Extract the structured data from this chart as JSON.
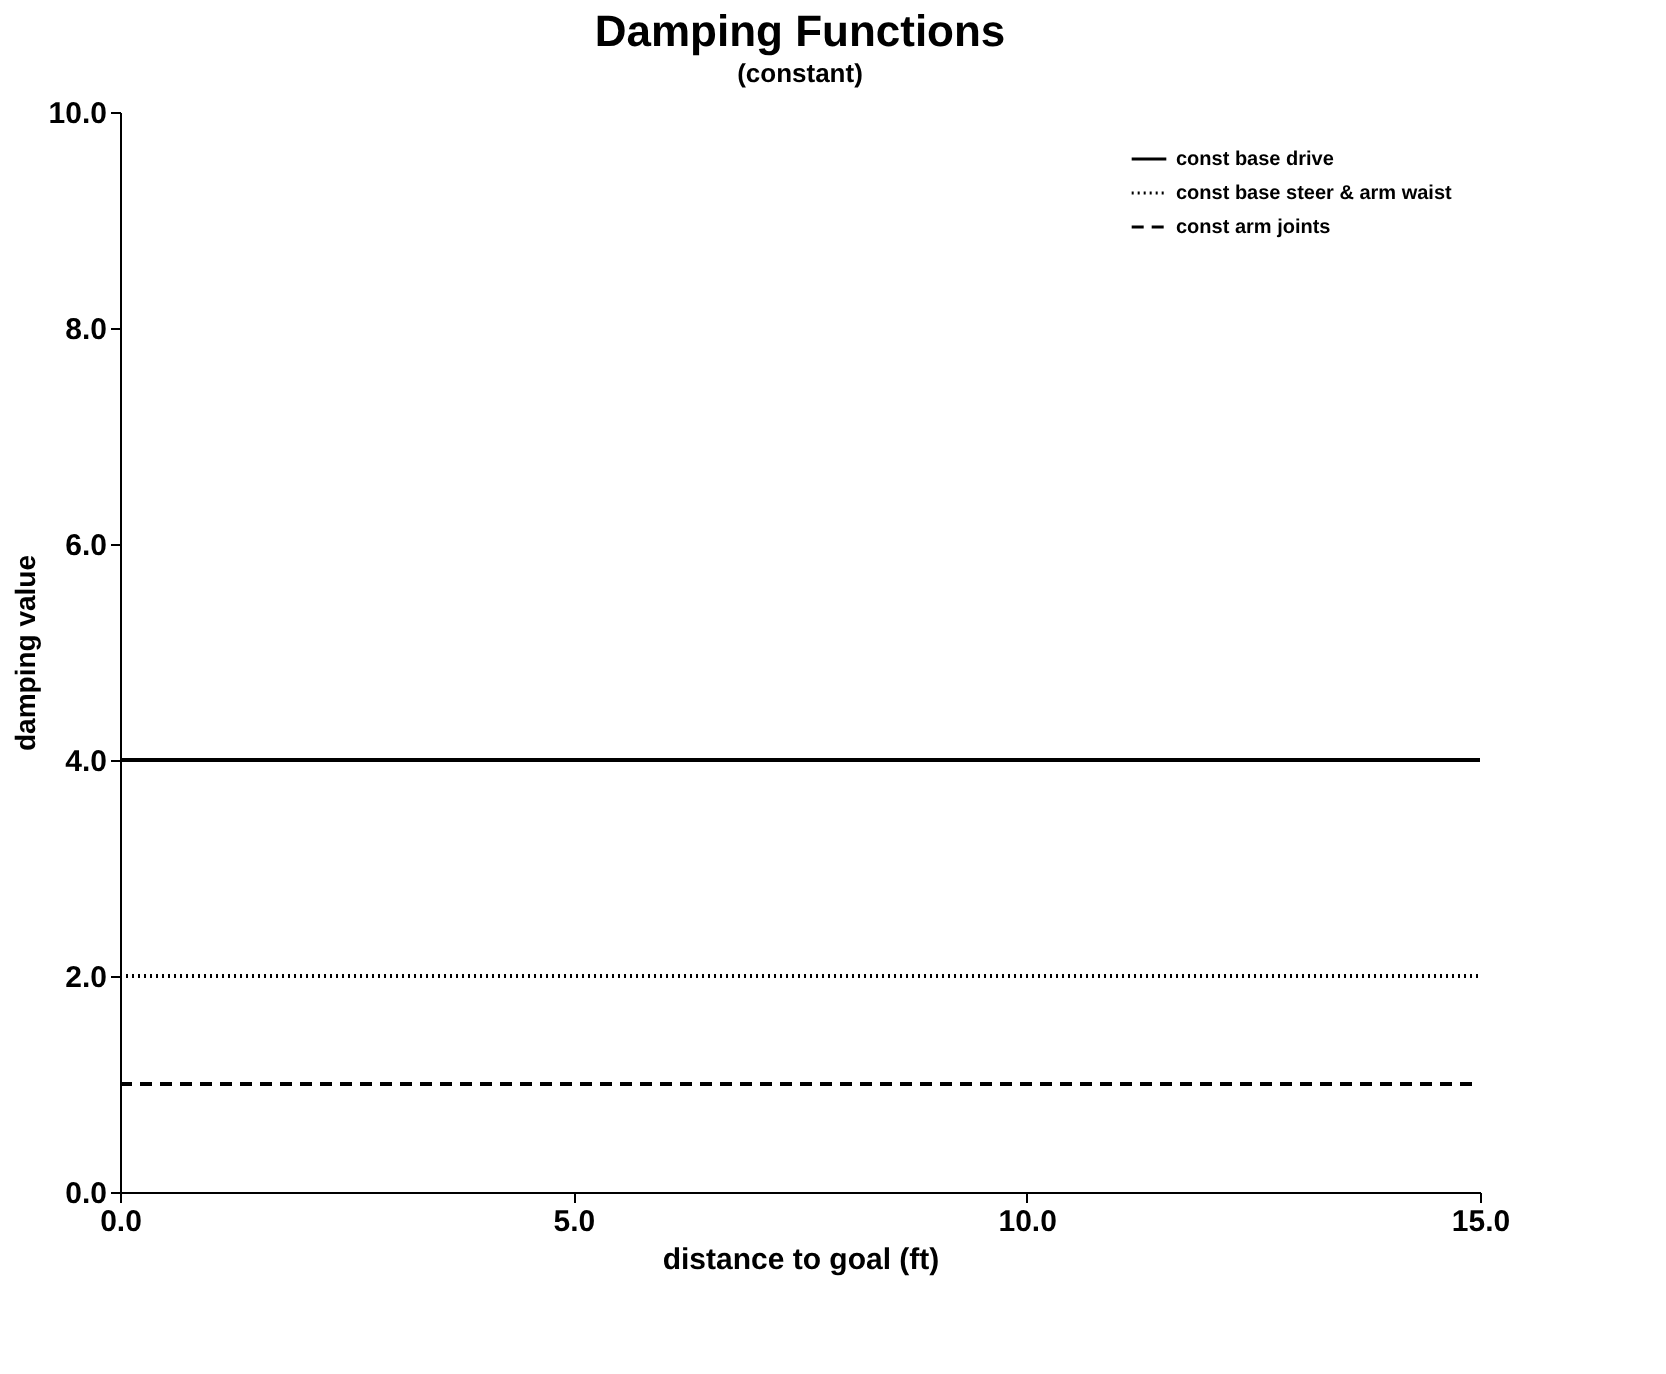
{
  "chart_data": {
    "type": "line",
    "title": "Damping Functions",
    "subtitle": "(constant)",
    "xlabel": "distance to goal (ft)",
    "ylabel": "damping value",
    "x": [
      0,
      15
    ],
    "series": [
      {
        "name": "const base drive",
        "color": "#000000",
        "line_style": "solid",
        "values": [
          4,
          4
        ]
      },
      {
        "name": "const base steer & arm waist",
        "color": "#000000",
        "line_style": "dotted",
        "values": [
          2,
          2
        ]
      },
      {
        "name": "const arm joints",
        "color": "#000000",
        "line_style": "dashed",
        "values": [
          1,
          1
        ]
      }
    ],
    "xlim": [
      0,
      15
    ],
    "xticks": [
      {
        "value": 0,
        "label": "0.0"
      },
      {
        "value": 5,
        "label": "5.0"
      },
      {
        "value": 10,
        "label": "10.0"
      },
      {
        "value": 15,
        "label": "15.0"
      }
    ],
    "ylim": [
      0,
      10
    ],
    "yticks": [
      {
        "value": 0,
        "label": "0.0"
      },
      {
        "value": 2,
        "label": "2.0"
      },
      {
        "value": 4,
        "label": "4.0"
      },
      {
        "value": 6,
        "label": "6.0"
      },
      {
        "value": 8,
        "label": "8.0"
      },
      {
        "value": 10,
        "label": "10.0"
      }
    ],
    "grid": false,
    "legend": "top right",
    "marker": "none"
  }
}
